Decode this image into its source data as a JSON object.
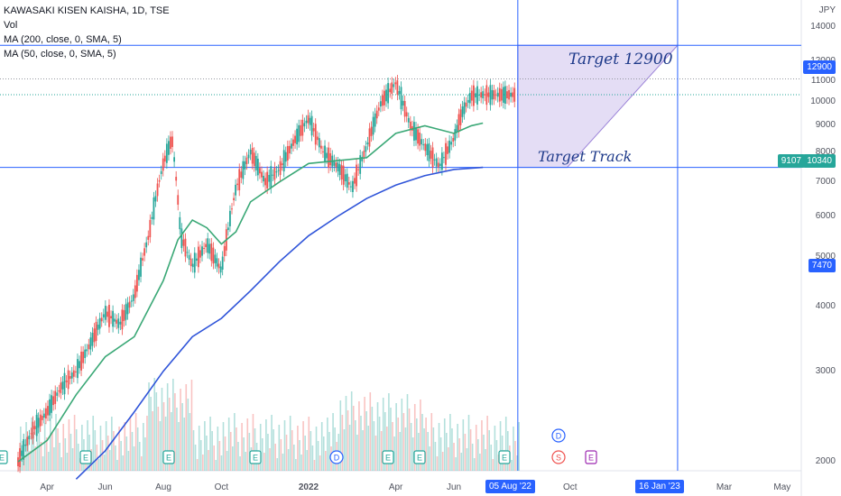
{
  "legend": {
    "symbol": "KAWASAKI KISEN KAISHA, 1D, TSE",
    "vol": "Vol",
    "ma200": "MA (200, close, 0, SMA, 5)",
    "ma50": "MA (50, close, 0, SMA, 5)"
  },
  "annotations": {
    "target_price": "Target 12900",
    "target_track": "Target Track"
  },
  "price_axis": {
    "currency": "JPY",
    "ticks": [
      "14000",
      "12000",
      "11000",
      "10000",
      "9000",
      "8000",
      "7000",
      "6000",
      "5000",
      "4000",
      "3000",
      "2000"
    ]
  },
  "time_axis": {
    "ticks": [
      "Apr",
      "Jun",
      "Aug",
      "Oct",
      "2022",
      "Apr",
      "Jun",
      "Oct",
      "Mar",
      "May"
    ]
  },
  "badges": {
    "price_12900": "12900",
    "price_7470": "7470",
    "last_price": "10340",
    "countdown": "9107",
    "date_aug": "05 Aug '22",
    "date_jan": "16 Jan '23"
  },
  "event_markers": [
    "E",
    "E",
    "E",
    "E",
    "D",
    "E",
    "E",
    "E",
    "D",
    "S",
    "E"
  ],
  "colors": {
    "up": "#26a69a",
    "down": "#ef5350",
    "ma50": "#3aa876",
    "ma200": "#2f54d9",
    "guide": "#2962ff",
    "zone": "#d8cff1",
    "badge_blue": "#2962ff",
    "badge_green": "#26a69a"
  },
  "chart_data": {
    "type": "line",
    "title": "KAWASAKI KISEN KAISHA, 1D, TSE",
    "x_unit": "months from Mar 2021",
    "ylim": [
      1800,
      14500
    ],
    "y_scale": "log",
    "series": [
      {
        "name": "Price",
        "x": [
          0,
          0.5,
          1,
          1.5,
          2,
          2.5,
          3,
          3.5,
          4,
          4.5,
          5,
          5.3,
          5.6,
          6,
          6.5,
          7,
          7.5,
          8,
          8.5,
          9,
          9.5,
          10,
          10.5,
          11,
          11.5,
          12,
          12.5,
          13,
          13.5,
          14,
          14.5,
          15,
          15.3,
          15.6,
          16,
          16.4,
          16.8,
          17.2
        ],
        "y": [
          2000,
          2300,
          2500,
          2800,
          3000,
          3400,
          3900,
          3700,
          4200,
          5500,
          7600,
          8500,
          5500,
          4800,
          5300,
          4700,
          6800,
          8000,
          7000,
          7400,
          8400,
          9300,
          8000,
          7500,
          6800,
          8200,
          10000,
          10900,
          9000,
          8200,
          7500,
          8500,
          9600,
          10300,
          10340,
          10340,
          10340,
          10340
        ]
      },
      {
        "name": "MA (50, close, 0, SMA, 5)",
        "x": [
          0,
          1,
          2,
          3,
          4,
          5,
          5.5,
          6,
          6.5,
          7,
          7.5,
          8,
          9,
          10,
          11,
          12,
          13,
          14,
          15,
          15.6,
          16
        ],
        "y": [
          2000,
          2200,
          2700,
          3200,
          3500,
          4500,
          5400,
          5900,
          5700,
          5300,
          5600,
          6400,
          7000,
          7600,
          7700,
          7800,
          8700,
          9000,
          8700,
          9000,
          9107
        ]
      },
      {
        "name": "MA (200, close, 0, SMA, 5)",
        "x": [
          2,
          3,
          4,
          5,
          6,
          7,
          8,
          9,
          10,
          11,
          12,
          13,
          14,
          15,
          16
        ],
        "y": [
          1850,
          2100,
          2500,
          3000,
          3500,
          3800,
          4300,
          4900,
          5500,
          6000,
          6500,
          6900,
          7200,
          7400,
          7470
        ]
      }
    ],
    "levels": [
      12900,
      7470
    ],
    "dates": [
      "05 Aug '22",
      "16 Jan '23"
    ]
  }
}
